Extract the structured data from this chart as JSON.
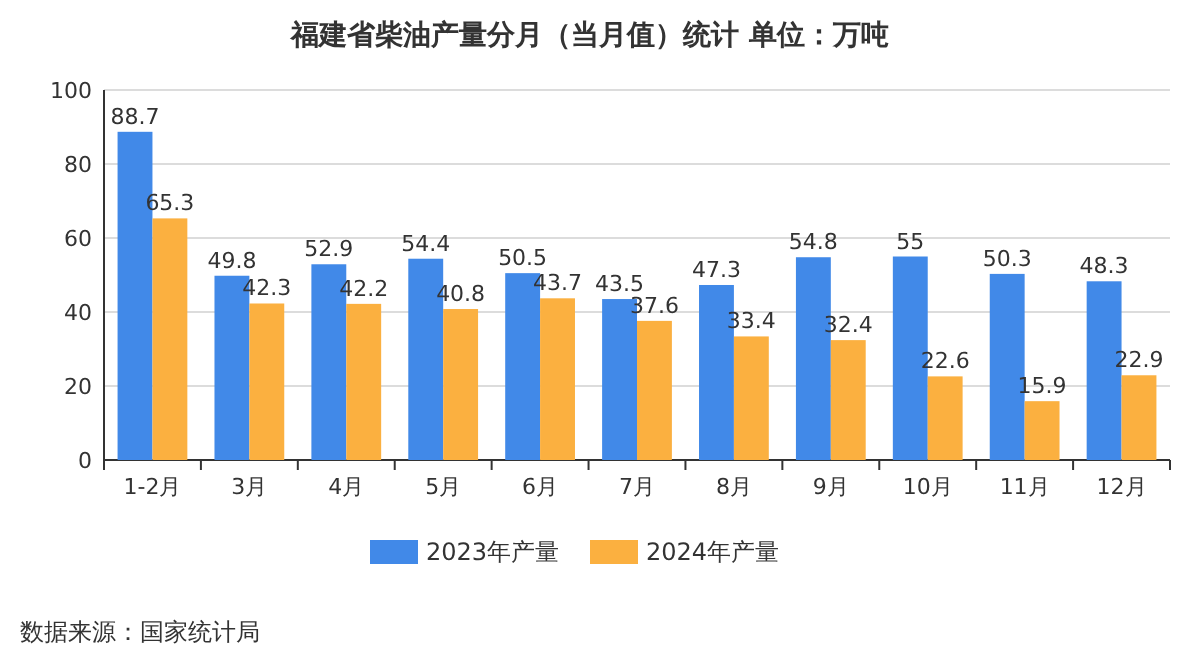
{
  "chart_data": {
    "type": "bar",
    "title": "福建省柴油产量分月（当月值）统计  单位：万吨",
    "categories": [
      "1-2月",
      "3月",
      "4月",
      "5月",
      "6月",
      "7月",
      "8月",
      "9月",
      "10月",
      "11月",
      "12月"
    ],
    "series": [
      {
        "name": "2023年产量",
        "color": "#4189e8",
        "values": [
          88.7,
          49.8,
          52.9,
          54.4,
          50.5,
          43.5,
          47.3,
          54.8,
          55,
          50.3,
          48.3
        ]
      },
      {
        "name": "2024年产量",
        "color": "#fbb040",
        "values": [
          65.3,
          42.3,
          42.2,
          40.8,
          43.7,
          37.6,
          33.4,
          32.4,
          22.6,
          15.9,
          22.9
        ]
      }
    ],
    "ylim": [
      0,
      100
    ],
    "yticks": [
      0,
      20,
      40,
      60,
      80,
      100
    ],
    "grid": "y",
    "legend": "bottom",
    "data_labels": true,
    "annotations": [
      "数据来源：国家统计局"
    ]
  }
}
